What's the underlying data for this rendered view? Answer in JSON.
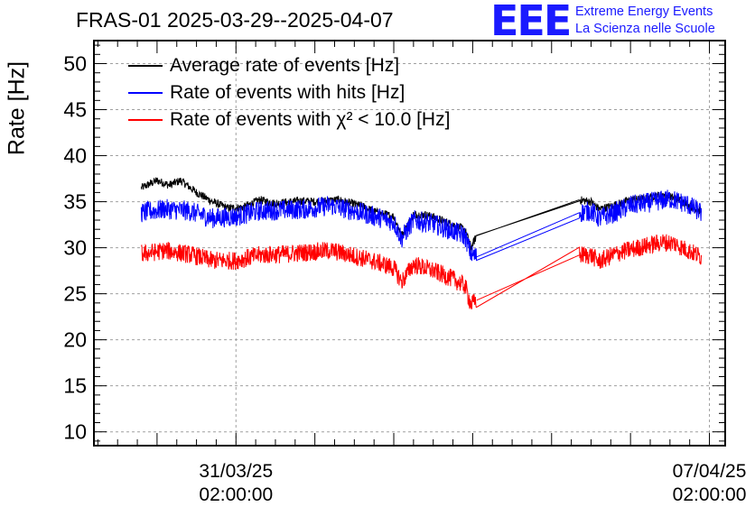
{
  "chart_data": {
    "type": "line",
    "title": "FRAS-01 2025-03-29--2025-04-07",
    "ylabel": "Rate [Hz]",
    "xlabel": "",
    "ylim": [
      8.5,
      52.5
    ],
    "yticks": [
      10,
      15,
      20,
      25,
      30,
      35,
      40,
      45,
      50
    ],
    "xlim": [
      -1.8,
      6.2
    ],
    "xticks": [
      {
        "pos": 0,
        "date": "31/03/25",
        "time": "02:00:00"
      },
      {
        "pos": 6,
        "date": "07/04/25",
        "time": "02:00:00"
      }
    ],
    "grid": true,
    "legend_position": "top-left",
    "series": [
      {
        "name": "Average rate of events [Hz]",
        "color": "#000000",
        "noise": 0.45,
        "points": [
          [
            -1.2,
            36.5
          ],
          [
            -1.0,
            37.3
          ],
          [
            -0.85,
            36.8
          ],
          [
            -0.7,
            37.3
          ],
          [
            -0.5,
            36.0
          ],
          [
            -0.3,
            35.0
          ],
          [
            -0.1,
            34.3
          ],
          [
            0.1,
            34.4
          ],
          [
            0.3,
            35.2
          ],
          [
            0.5,
            34.8
          ],
          [
            0.8,
            35.1
          ],
          [
            1.0,
            35.0
          ],
          [
            1.3,
            35.2
          ],
          [
            1.6,
            34.5
          ],
          [
            1.8,
            33.8
          ],
          [
            2.0,
            33.4
          ],
          [
            2.1,
            31.3
          ],
          [
            2.25,
            33.6
          ],
          [
            2.4,
            33.6
          ],
          [
            2.55,
            33.2
          ],
          [
            2.75,
            32.5
          ],
          [
            2.9,
            32.0
          ],
          [
            2.98,
            30.0
          ],
          [
            3.05,
            31.3
          ],
          [
            4.35,
            35.2
          ],
          [
            4.5,
            35.0
          ],
          [
            4.6,
            34.2
          ],
          [
            4.75,
            34.5
          ],
          [
            5.0,
            35.2
          ],
          [
            5.2,
            35.3
          ],
          [
            5.4,
            35.8
          ],
          [
            5.6,
            35.3
          ],
          [
            5.8,
            34.3
          ],
          [
            5.9,
            34.0
          ]
        ]
      },
      {
        "name": "Rate of events with hits [Hz]",
        "color": "#0000ff",
        "noise": 1.1,
        "points": [
          [
            -1.2,
            33.8
          ],
          [
            -0.9,
            34.2
          ],
          [
            -0.6,
            34.0
          ],
          [
            -0.3,
            33.2
          ],
          [
            0.0,
            33.4
          ],
          [
            0.3,
            34.0
          ],
          [
            0.6,
            34.1
          ],
          [
            0.9,
            34.2
          ],
          [
            1.2,
            34.6
          ],
          [
            1.5,
            34.0
          ],
          [
            1.8,
            33.3
          ],
          [
            2.0,
            32.8
          ],
          [
            2.1,
            31.0
          ],
          [
            2.25,
            33.0
          ],
          [
            2.5,
            32.6
          ],
          [
            2.75,
            31.8
          ],
          [
            2.9,
            31.3
          ],
          [
            2.98,
            29.3
          ],
          [
            3.05,
            29.0
          ],
          [
            4.35,
            33.8
          ],
          [
            4.5,
            34.0
          ],
          [
            4.6,
            33.2
          ],
          [
            4.8,
            33.8
          ],
          [
            5.0,
            34.6
          ],
          [
            5.3,
            35.0
          ],
          [
            5.5,
            35.3
          ],
          [
            5.7,
            34.8
          ],
          [
            5.9,
            33.8
          ]
        ]
      },
      {
        "name": "Rate of events with χ² < 10.0 [Hz]",
        "color": "#ff0000",
        "noise": 1.0,
        "points": [
          [
            -1.2,
            29.3
          ],
          [
            -0.9,
            29.7
          ],
          [
            -0.6,
            29.3
          ],
          [
            -0.3,
            28.6
          ],
          [
            0.0,
            28.6
          ],
          [
            0.3,
            29.2
          ],
          [
            0.6,
            29.3
          ],
          [
            0.9,
            29.5
          ],
          [
            1.2,
            29.7
          ],
          [
            1.5,
            29.1
          ],
          [
            1.8,
            28.4
          ],
          [
            2.0,
            27.8
          ],
          [
            2.1,
            26.3
          ],
          [
            2.25,
            28.2
          ],
          [
            2.5,
            27.5
          ],
          [
            2.75,
            26.6
          ],
          [
            2.9,
            25.9
          ],
          [
            2.98,
            23.8
          ],
          [
            3.05,
            24.3
          ],
          [
            4.35,
            29.2
          ],
          [
            4.5,
            29.2
          ],
          [
            4.6,
            28.5
          ],
          [
            4.8,
            29.3
          ],
          [
            5.0,
            29.8
          ],
          [
            5.2,
            30.2
          ],
          [
            5.4,
            30.6
          ],
          [
            5.55,
            30.5
          ],
          [
            5.7,
            29.8
          ],
          [
            5.9,
            29.0
          ]
        ]
      }
    ],
    "gap": [
      3.05,
      4.35
    ]
  },
  "header": {
    "title": "FRAS-01 2025-03-29--2025-04-07",
    "logo": "EEE",
    "logo_line1": "Extreme Energy Events",
    "logo_line2": "La Scienza nelle Scuole"
  },
  "legend": {
    "item1": "Average rate of events [Hz]",
    "item2": "Rate of events with hits [Hz]",
    "item3": "Rate of events with χ² < 10.0 [Hz]"
  },
  "colors": {
    "black": "#000000",
    "blue": "#0000ff",
    "red": "#ff0000",
    "grid": "#b0b0b0"
  }
}
